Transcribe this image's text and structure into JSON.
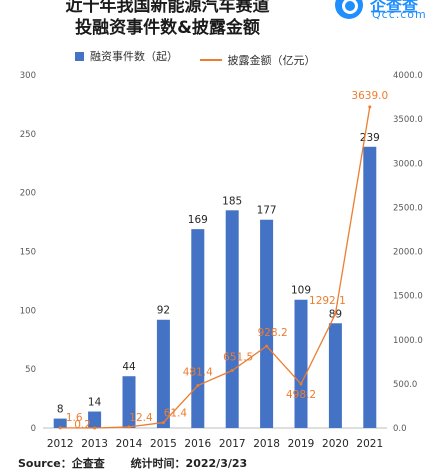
{
  "header": {
    "title_line1": "近十年我国新能源汽车赛道",
    "title_line2": "投融资事件数&披露金额"
  },
  "logo": {
    "cn": "企查查",
    "en": "Qcc.com"
  },
  "footer": {
    "source": "Source：企查查",
    "date": "统计时间：2022/3/23"
  },
  "colors": {
    "bar": "#4472c4",
    "line": "#ed7d31",
    "axis_text": "#595959",
    "grid": "#d9d9d9"
  },
  "chart_data": {
    "type": "bar",
    "categories": [
      "2012",
      "2013",
      "2014",
      "2015",
      "2016",
      "2017",
      "2018",
      "2019",
      "2020",
      "2021"
    ],
    "series": [
      {
        "name": "融资事件数（起）",
        "type": "bar",
        "axis": "left",
        "values": [
          8,
          14,
          44,
          92,
          169,
          185,
          177,
          109,
          89,
          239
        ],
        "labels": [
          "8",
          "14",
          "44",
          "92",
          "169",
          "185",
          "177",
          "109",
          "89",
          "239"
        ]
      },
      {
        "name": "披露金额（亿元）",
        "type": "line",
        "axis": "right",
        "values": [
          1.6,
          0.2,
          12.4,
          61.4,
          481.4,
          651.5,
          928.2,
          498.2,
          1292.1,
          3639.0
        ],
        "labels": [
          "1.6",
          "0.2",
          "12.4",
          "61.4",
          "481.4",
          "651.5",
          "928.2",
          "498.2",
          "1292.1",
          "3639.0"
        ]
      }
    ],
    "y_left": {
      "ylim": [
        0,
        300
      ],
      "ticks": [
        "0",
        "50",
        "100",
        "150",
        "200",
        "250",
        "300"
      ]
    },
    "y_right": {
      "ylim": [
        0,
        4000
      ],
      "ticks": [
        "0.0",
        "500.0",
        "1000.0",
        "1500.0",
        "2000.0",
        "2500.0",
        "3000.0",
        "3500.0",
        "4000.0"
      ]
    },
    "legend_position": "top-center",
    "grid": false
  }
}
